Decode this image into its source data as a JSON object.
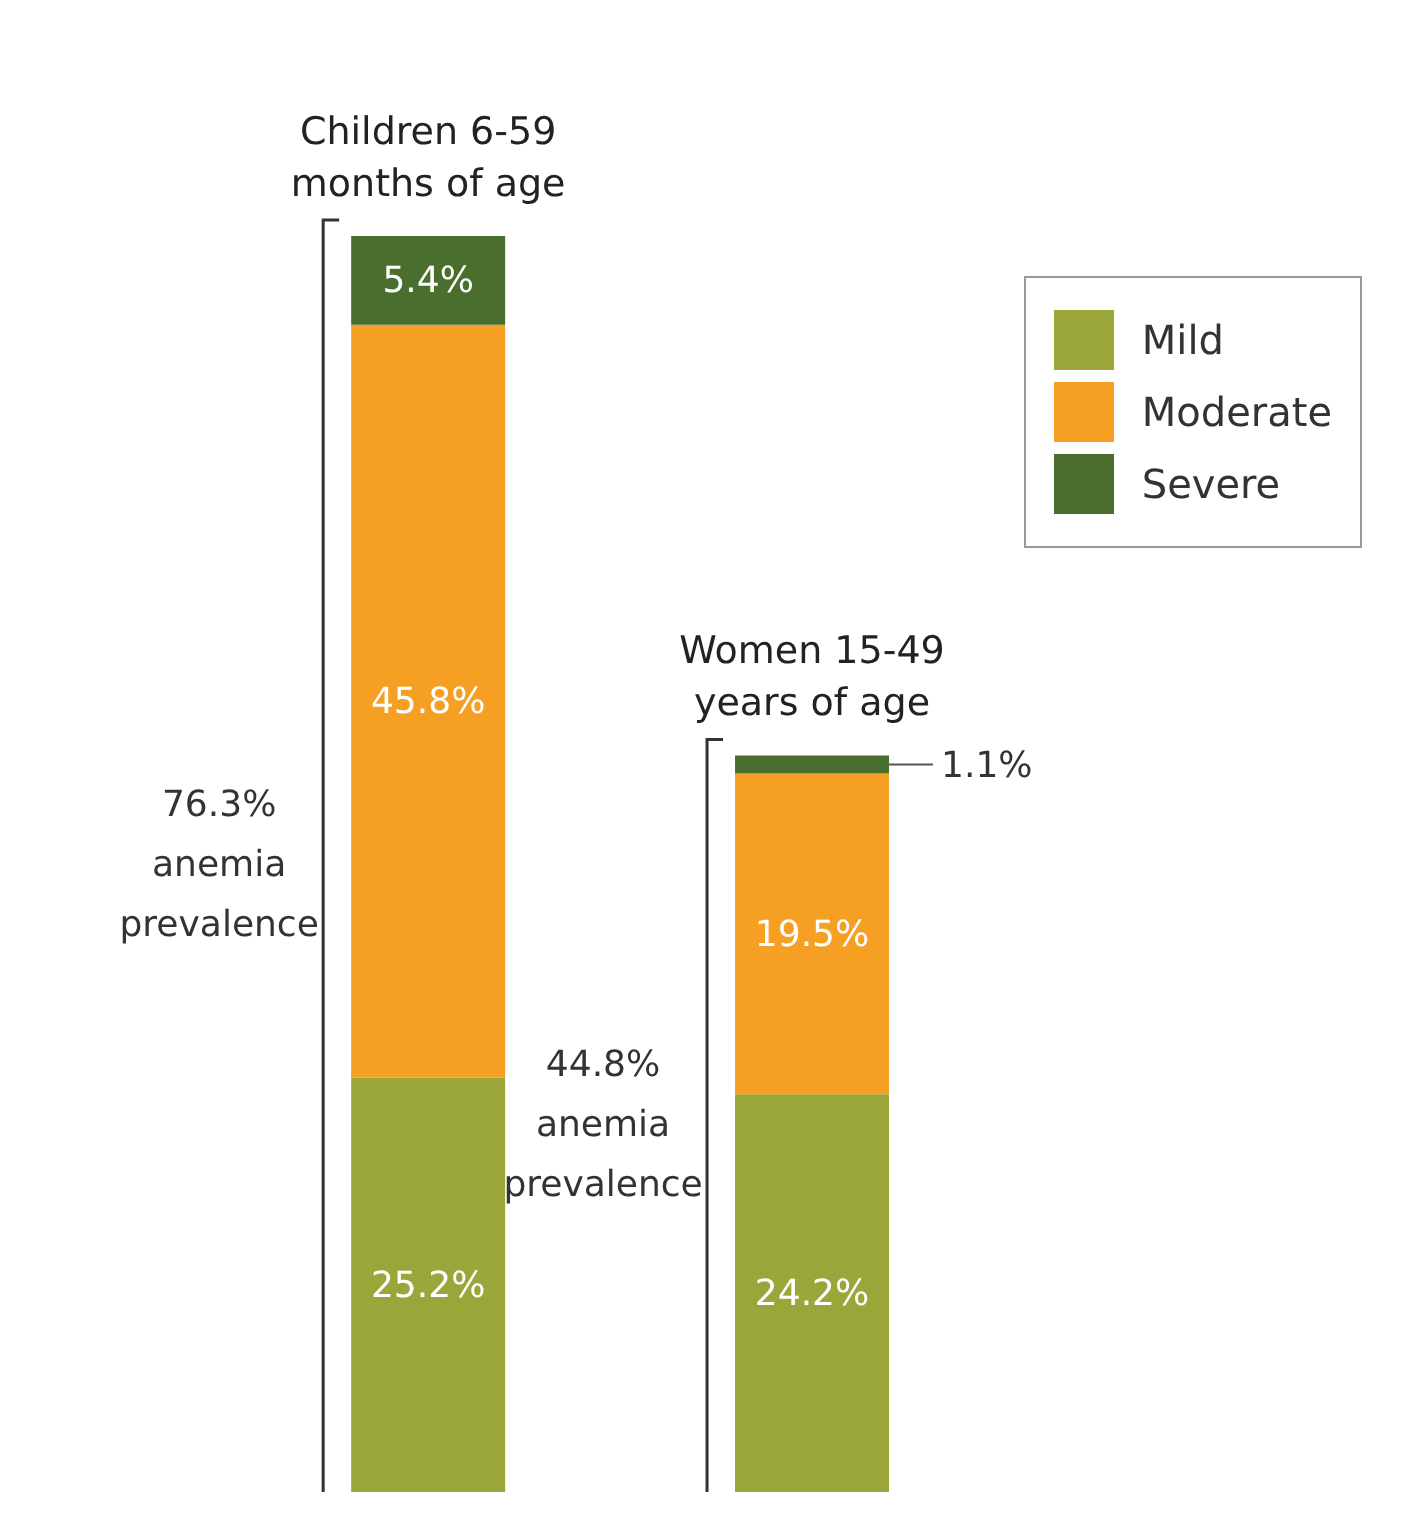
{
  "chart_data": {
    "type": "bar",
    "stacked": true,
    "categories": [
      "Children 6-59 months of age",
      "Women 15-49 years of age"
    ],
    "series": [
      {
        "name": "Mild",
        "color": "#9aa63a",
        "values": [
          25.2,
          24.2
        ],
        "value_labels": [
          "25.2%",
          "24.2%"
        ]
      },
      {
        "name": "Moderate",
        "color": "#f5a023",
        "values": [
          45.8,
          19.5
        ],
        "value_labels": [
          "45.8%",
          "19.5%"
        ]
      },
      {
        "name": "Severe",
        "color": "#4a6e2e",
        "values": [
          5.4,
          1.1
        ],
        "value_labels": [
          "5.4%",
          "1.1%"
        ]
      }
    ],
    "totals": [
      "76.3% anemia prevalence",
      "44.8% anemia prevalence"
    ],
    "legend": "top right"
  }
}
